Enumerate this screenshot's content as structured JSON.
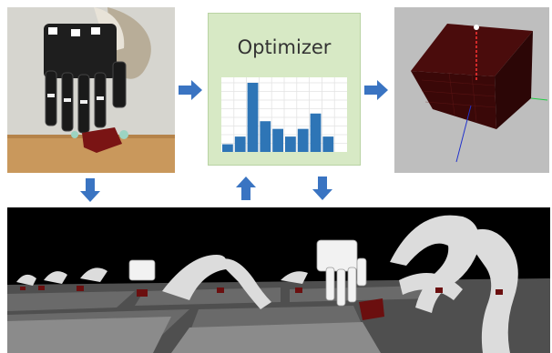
{
  "optimizer": {
    "title": "Optimizer"
  },
  "chart_data": {
    "type": "bar",
    "categories": [
      "",
      "",
      "",
      "",
      "",
      "",
      "",
      "",
      "",
      ""
    ],
    "values": [
      1,
      2,
      9,
      4,
      3,
      2,
      3,
      5,
      2,
      0
    ],
    "title": "",
    "xlabel": "",
    "ylabel": "",
    "grid": true,
    "bar_color": "#2e75b6"
  },
  "colors": {
    "arrow": "#3a74c2",
    "optimizer_bg": "#d7e9c5",
    "cube": "#5a1010"
  },
  "arrows": [
    {
      "name": "right-arrow-to-optimizer",
      "direction": "right"
    },
    {
      "name": "right-arrow-to-simulation",
      "direction": "right"
    },
    {
      "name": "down-arrow-from-photo",
      "direction": "down"
    },
    {
      "name": "up-arrow-to-optimizer",
      "direction": "up"
    },
    {
      "name": "down-arrow-from-optimizer",
      "direction": "down"
    }
  ]
}
